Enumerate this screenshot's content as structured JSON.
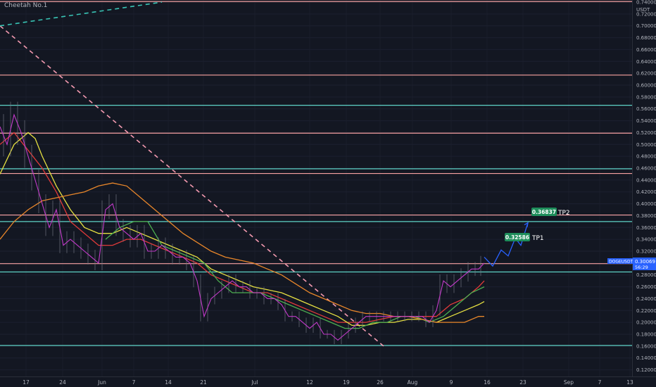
{
  "study": {
    "title": "Cheetah No.1"
  },
  "chart_data": {
    "type": "line",
    "symbol": "DOGEUSDT",
    "currency": "USDT",
    "last_price": "0.30069",
    "countdown": "56:29",
    "ylim": [
      0.11,
      0.74
    ],
    "y_ticks": [
      "0.74000",
      "0.72000",
      "0.70000",
      "0.68000",
      "0.66000",
      "0.64000",
      "0.62000",
      "0.60000",
      "0.58000",
      "0.56000",
      "0.54000",
      "0.52000",
      "0.50000",
      "0.48000",
      "0.46000",
      "0.44000",
      "0.42000",
      "0.40000",
      "0.38000",
      "0.36000",
      "0.34000",
      "0.32000",
      "0.30000",
      "0.28000",
      "0.26000",
      "0.24000",
      "0.22000",
      "0.20000",
      "0.18000",
      "0.16000",
      "0.14000",
      "0.12000"
    ],
    "x_ticks": [
      "17",
      "24",
      "Jun",
      "7",
      "14",
      "21",
      "Jul",
      "12",
      "19",
      "26",
      "Aug",
      "9",
      "16",
      "23",
      "Sep",
      "7",
      "13"
    ],
    "horizontal_levels": [
      {
        "value": 0.741,
        "color": "#f7a1a1"
      },
      {
        "value": 0.617,
        "color": "#f7a1a1"
      },
      {
        "value": 0.566,
        "color": "#5ed3c7"
      },
      {
        "value": 0.519,
        "color": "#f7a1a1"
      },
      {
        "value": 0.459,
        "color": "#5ed3c7"
      },
      {
        "value": 0.451,
        "color": "#f7a1a1"
      },
      {
        "value": 0.381,
        "color": "#f7a1a1"
      },
      {
        "value": 0.37,
        "color": "#5ed3c7"
      },
      {
        "value": 0.299,
        "color": "#f7a1a1"
      },
      {
        "value": 0.285,
        "color": "#5ed3c7"
      },
      {
        "value": 0.161,
        "color": "#5ed3c7"
      }
    ],
    "targets": [
      {
        "label": "TP1",
        "value_text": "0.32586"
      },
      {
        "label": "TP2",
        "value_text": "0.36837"
      }
    ],
    "price_series": {
      "name": "",
      "color": "#c23ac9",
      "x": [
        0,
        10,
        20,
        30,
        40,
        50,
        60,
        70,
        80,
        90,
        100,
        110,
        120,
        130,
        140,
        150,
        160,
        170,
        180,
        190,
        200,
        210,
        220,
        230,
        240,
        250,
        260,
        270,
        280,
        290,
        300,
        310,
        320,
        330,
        340,
        350,
        360,
        370,
        380,
        390,
        400,
        410,
        420,
        430,
        440,
        450,
        460,
        470,
        480,
        490,
        500,
        510,
        520,
        530,
        540,
        550,
        560,
        570,
        580,
        590,
        600,
        610,
        620,
        630,
        640,
        650,
        660,
        670,
        680,
        688
      ],
      "y": [
        0.53,
        0.5,
        0.55,
        0.52,
        0.48,
        0.44,
        0.4,
        0.36,
        0.39,
        0.33,
        0.34,
        0.33,
        0.32,
        0.31,
        0.3,
        0.39,
        0.4,
        0.36,
        0.35,
        0.34,
        0.35,
        0.32,
        0.32,
        0.33,
        0.32,
        0.31,
        0.31,
        0.3,
        0.27,
        0.21,
        0.24,
        0.25,
        0.26,
        0.27,
        0.26,
        0.26,
        0.25,
        0.25,
        0.24,
        0.24,
        0.23,
        0.21,
        0.21,
        0.2,
        0.19,
        0.2,
        0.18,
        0.18,
        0.17,
        0.18,
        0.19,
        0.2,
        0.21,
        0.21,
        0.21,
        0.21,
        0.21,
        0.21,
        0.21,
        0.21,
        0.21,
        0.2,
        0.22,
        0.27,
        0.26,
        0.27,
        0.28,
        0.29,
        0.29,
        0.3
      ]
    },
    "ma_series": [
      {
        "name": "",
        "color": "#e03a3a",
        "x": [
          0,
          20,
          40,
          60,
          80,
          100,
          120,
          140,
          160,
          180,
          200,
          220,
          240,
          260,
          280,
          300,
          320,
          340,
          360,
          380,
          400,
          420,
          440,
          460,
          480,
          500,
          520,
          540,
          560,
          580,
          600,
          620,
          640,
          660,
          680,
          688
        ],
        "y": [
          0.5,
          0.52,
          0.49,
          0.46,
          0.42,
          0.37,
          0.35,
          0.33,
          0.33,
          0.34,
          0.34,
          0.33,
          0.32,
          0.31,
          0.3,
          0.28,
          0.27,
          0.26,
          0.25,
          0.25,
          0.24,
          0.23,
          0.22,
          0.21,
          0.2,
          0.2,
          0.2,
          0.205,
          0.21,
          0.21,
          0.21,
          0.21,
          0.23,
          0.24,
          0.26,
          0.27
        ]
      },
      {
        "name": "",
        "color": "#e6e041",
        "x": [
          0,
          20,
          40,
          50,
          60,
          80,
          100,
          120,
          140,
          160,
          180,
          200,
          220,
          240,
          260,
          280,
          300,
          320,
          340,
          360,
          380,
          400,
          420,
          440,
          460,
          480,
          500,
          520,
          540,
          560,
          580,
          600,
          620,
          640,
          660,
          680,
          688
        ],
        "y": [
          0.45,
          0.5,
          0.52,
          0.51,
          0.48,
          0.43,
          0.39,
          0.36,
          0.35,
          0.35,
          0.36,
          0.35,
          0.34,
          0.33,
          0.32,
          0.31,
          0.29,
          0.28,
          0.27,
          0.26,
          0.255,
          0.25,
          0.24,
          0.23,
          0.22,
          0.21,
          0.195,
          0.195,
          0.2,
          0.2,
          0.205,
          0.205,
          0.2,
          0.21,
          0.22,
          0.23,
          0.235
        ]
      },
      {
        "name": "",
        "color": "#4caf50",
        "x": [
          150,
          170,
          190,
          210,
          230,
          250,
          270,
          290,
          310,
          330,
          350,
          370,
          390,
          410,
          430,
          450,
          470,
          490,
          510,
          530,
          550,
          570,
          590,
          610,
          630,
          650,
          670,
          688
        ],
        "y": [
          0.34,
          0.36,
          0.37,
          0.37,
          0.33,
          0.32,
          0.31,
          0.3,
          0.27,
          0.25,
          0.25,
          0.25,
          0.24,
          0.23,
          0.22,
          0.21,
          0.2,
          0.19,
          0.19,
          0.2,
          0.2,
          0.21,
          0.21,
          0.2,
          0.21,
          0.23,
          0.25,
          0.26
        ]
      },
      {
        "name": "",
        "color": "#e8862a",
        "x": [
          0,
          20,
          40,
          60,
          80,
          100,
          120,
          140,
          160,
          180,
          200,
          220,
          240,
          260,
          280,
          300,
          320,
          340,
          360,
          380,
          400,
          420,
          440,
          460,
          480,
          500,
          520,
          540,
          560,
          580,
          600,
          620,
          640,
          660,
          680,
          688
        ],
        "y": [
          0.34,
          0.37,
          0.39,
          0.405,
          0.41,
          0.415,
          0.42,
          0.43,
          0.435,
          0.43,
          0.41,
          0.39,
          0.37,
          0.35,
          0.335,
          0.32,
          0.31,
          0.305,
          0.3,
          0.29,
          0.28,
          0.265,
          0.25,
          0.24,
          0.23,
          0.22,
          0.215,
          0.215,
          0.21,
          0.21,
          0.205,
          0.2,
          0.2,
          0.2,
          0.21,
          0.21
        ]
      }
    ],
    "trendlines": [
      {
        "color": "#f49ab0",
        "style": "dashed",
        "x": [
          0,
          545
        ],
        "y": [
          0.7,
          0.16
        ]
      },
      {
        "color": "#38c3b4",
        "style": "dashed",
        "x": [
          0,
          230
        ],
        "y": [
          0.7,
          0.74
        ]
      }
    ],
    "projection": {
      "color": "#2962ff",
      "x": [
        688,
        700,
        712,
        722,
        732,
        740,
        750
      ],
      "y": [
        0.31,
        0.295,
        0.322,
        0.312,
        0.342,
        0.33,
        0.368
      ]
    }
  }
}
